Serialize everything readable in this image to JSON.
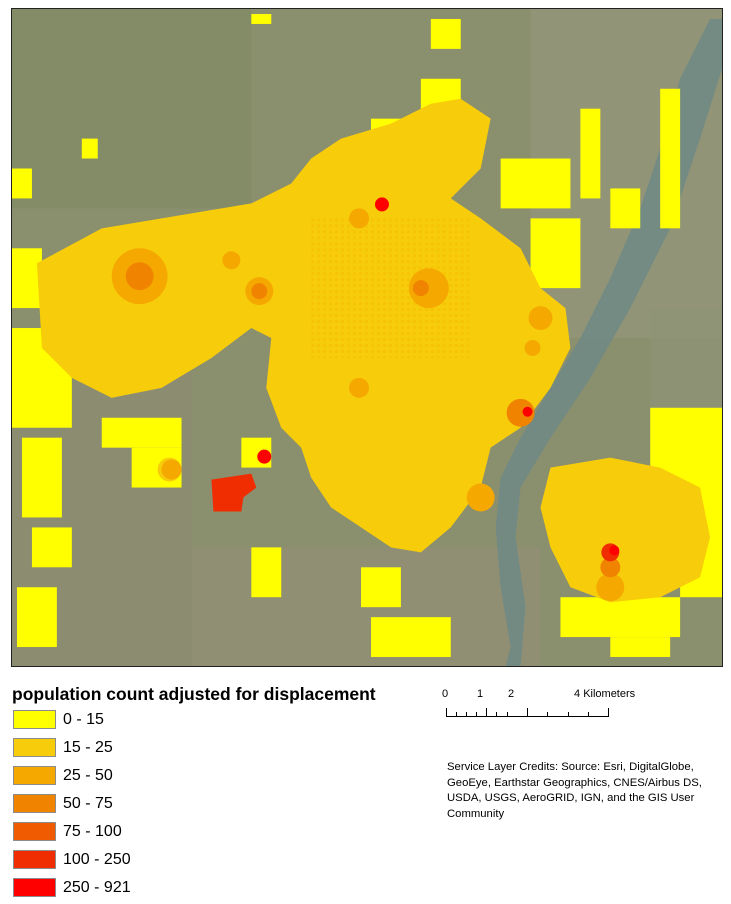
{
  "legend": {
    "title": "population count adjusted for displacement",
    "items": [
      {
        "label": "0 - 15",
        "color": "#ffff00"
      },
      {
        "label": "15 - 25",
        "color": "#f7cc0a"
      },
      {
        "label": "25 - 50",
        "color": "#f5a800"
      },
      {
        "label": "50 - 75",
        "color": "#f08400"
      },
      {
        "label": "75 - 100",
        "color": "#f05a00"
      },
      {
        "label": "100 - 250",
        "color": "#f02d00"
      },
      {
        "label": "250 - 921",
        "color": "#ff0000"
      }
    ]
  },
  "scale_bar": {
    "ticks": [
      "0",
      "1",
      "2",
      "4"
    ],
    "unit": "Kilometers"
  },
  "credits": {
    "text": "Service Layer Credits:  Source: Esri, DigitalGlobe, GeoEye, Earthstar Geographics, CNES/Airbus DS, USDA, USGS, AeroGRID, IGN, and the GIS User Community"
  },
  "colors": {
    "imagery_base": "#8a8f6e",
    "river": "#6f8a86"
  }
}
